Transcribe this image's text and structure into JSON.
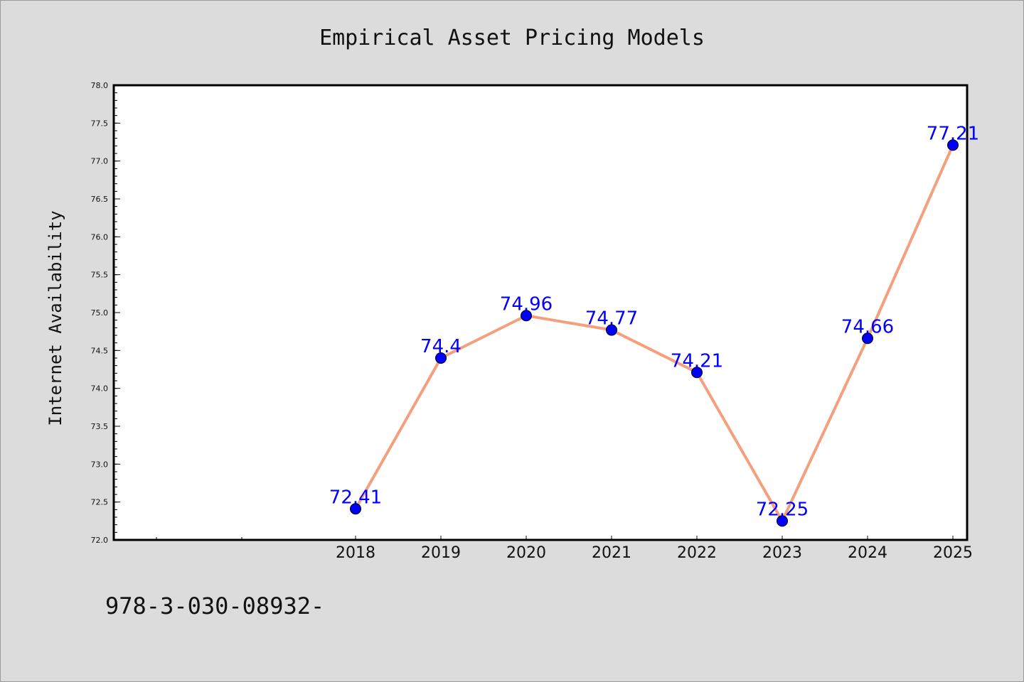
{
  "chart_data": {
    "type": "line",
    "title": "Empirical Asset Pricing Models",
    "xlabel": "",
    "ylabel": "Internet Availability",
    "categories": [
      "2018",
      "2019",
      "2020",
      "2021",
      "2022",
      "2023",
      "2024",
      "2025"
    ],
    "series": [
      {
        "values": [
          72.41,
          74.4,
          74.96,
          74.77,
          74.21,
          72.25,
          74.66,
          77.21
        ],
        "data_labels": [
          "72.41",
          "74.4",
          "74.96",
          "74.77",
          "74.21",
          "72.25",
          "74.66",
          "77.21"
        ]
      }
    ],
    "ylim": [
      72.0,
      78.0
    ],
    "yticks": [
      "72.0",
      "72.5",
      "73.0",
      "73.5",
      "74.0",
      "74.5",
      "75.0",
      "75.5",
      "76.0",
      "76.5",
      "77.0",
      "77.5",
      "78.0"
    ],
    "grid": false,
    "colors": {
      "line": "#f4a07e",
      "marker": "#0000ff",
      "marker_edge": "#000000",
      "labels": "#0000ff",
      "background": "#dcdcdc",
      "plot_background": "#ffffff"
    }
  },
  "footer_text": "978-3-030-08932-"
}
